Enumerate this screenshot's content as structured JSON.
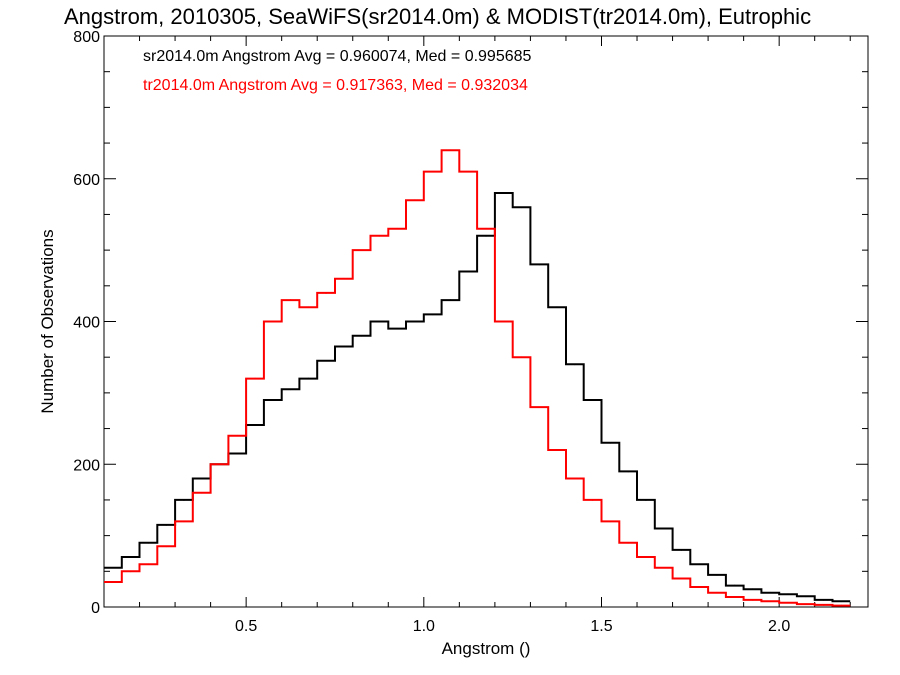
{
  "chart_data": {
    "type": "line",
    "step": true,
    "title": "Angstrom, 2010305, SeaWiFS(sr2014.0m) & MODIST(tr2014.0m), Eutrophic",
    "xlabel": "Angstrom ()",
    "ylabel": "Number of Observations",
    "xlim": [
      0.1,
      2.25
    ],
    "ylim": [
      0,
      800
    ],
    "x_ticks": [
      {
        "value": 0.5,
        "label": "0.5"
      },
      {
        "value": 1.0,
        "label": "1.0"
      },
      {
        "value": 1.5,
        "label": "1.5"
      },
      {
        "value": 2.0,
        "label": "2.0"
      }
    ],
    "y_ticks": [
      {
        "value": 0,
        "label": "0"
      },
      {
        "value": 200,
        "label": "200"
      },
      {
        "value": 400,
        "label": "400"
      },
      {
        "value": 600,
        "label": "600"
      },
      {
        "value": 800,
        "label": "800"
      }
    ],
    "grid": false,
    "legend_position": "top-left",
    "series": [
      {
        "label": "sr2014.0m Angstrom Avg = 0.960074, Med = 0.995685",
        "color": "#000000",
        "x": [
          0.1,
          0.15,
          0.2,
          0.25,
          0.3,
          0.35,
          0.4,
          0.45,
          0.5,
          0.55,
          0.6,
          0.65,
          0.7,
          0.75,
          0.8,
          0.85,
          0.9,
          0.95,
          1.0,
          1.05,
          1.1,
          1.15,
          1.2,
          1.25,
          1.3,
          1.35,
          1.4,
          1.45,
          1.5,
          1.55,
          1.6,
          1.65,
          1.7,
          1.75,
          1.8,
          1.85,
          1.9,
          1.95,
          2.0,
          2.05,
          2.1,
          2.15
        ],
        "y": [
          55,
          70,
          90,
          115,
          150,
          180,
          200,
          215,
          255,
          290,
          305,
          320,
          345,
          365,
          380,
          400,
          390,
          400,
          410,
          430,
          470,
          520,
          580,
          560,
          480,
          420,
          340,
          290,
          230,
          190,
          150,
          110,
          80,
          60,
          45,
          30,
          25,
          20,
          18,
          15,
          10,
          8
        ]
      },
      {
        "label": "tr2014.0m Angstrom Avg = 0.917363, Med = 0.932034",
        "color": "#ff0000",
        "x": [
          0.1,
          0.15,
          0.2,
          0.25,
          0.3,
          0.35,
          0.4,
          0.45,
          0.5,
          0.55,
          0.6,
          0.65,
          0.7,
          0.75,
          0.8,
          0.85,
          0.9,
          0.95,
          1.0,
          1.05,
          1.1,
          1.15,
          1.2,
          1.25,
          1.3,
          1.35,
          1.4,
          1.45,
          1.5,
          1.55,
          1.6,
          1.65,
          1.7,
          1.75,
          1.8,
          1.85,
          1.9,
          1.95,
          2.0,
          2.05,
          2.1,
          2.15
        ],
        "y": [
          35,
          50,
          60,
          85,
          120,
          160,
          200,
          240,
          320,
          400,
          430,
          420,
          440,
          460,
          500,
          520,
          530,
          570,
          610,
          640,
          610,
          530,
          400,
          350,
          280,
          220,
          180,
          150,
          120,
          90,
          70,
          55,
          40,
          28,
          20,
          14,
          10,
          8,
          6,
          4,
          3,
          2
        ]
      }
    ]
  }
}
